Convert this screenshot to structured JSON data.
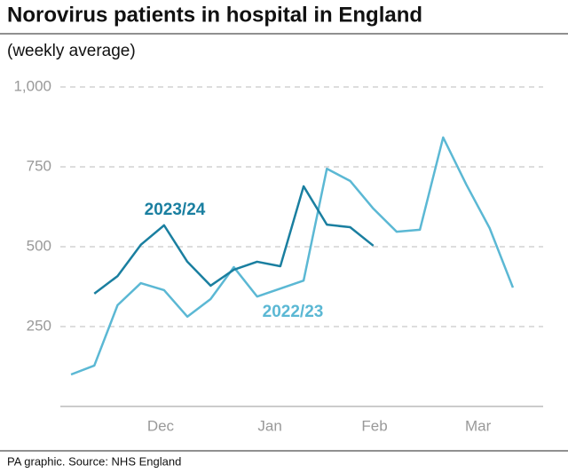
{
  "chart_data": {
    "type": "line",
    "title": "Norovirus patients in hospital in England",
    "subtitle": "(weekly average)",
    "source": "PA graphic. Source: NHS England",
    "series": [
      {
        "name": "2022/23",
        "color": "#5bb8d4",
        "x": [
          0,
          1,
          2,
          3,
          4,
          5,
          6,
          7,
          8,
          9,
          10,
          11,
          12,
          13,
          14,
          15,
          16,
          17,
          18,
          19
        ],
        "values": [
          100,
          128,
          317,
          386,
          364,
          281,
          336,
          436,
          344,
          369,
          394,
          744,
          706,
          619,
          547,
          553,
          842,
          694,
          558,
          372
        ]
      },
      {
        "name": "2023/24",
        "color": "#1a7fa0",
        "x": [
          1,
          2,
          3,
          4,
          5,
          6,
          7,
          8,
          9,
          10,
          11,
          12,
          13
        ],
        "values": [
          353,
          408,
          506,
          567,
          453,
          378,
          428,
          453,
          439,
          689,
          569,
          561,
          503
        ]
      }
    ],
    "xlim": [
      -0.46,
      20.3
    ],
    "xticks": [
      {
        "value": 3.85,
        "label": "Dec"
      },
      {
        "value": 8.55,
        "label": "Jan"
      },
      {
        "value": 13.05,
        "label": "Feb"
      },
      {
        "value": 17.5,
        "label": "Mar"
      }
    ],
    "ylim": [
      0,
      1000
    ],
    "yticks": [
      250,
      500,
      750,
      {
        "value": 1000,
        "label": "1,000"
      }
    ],
    "grid": true
  }
}
